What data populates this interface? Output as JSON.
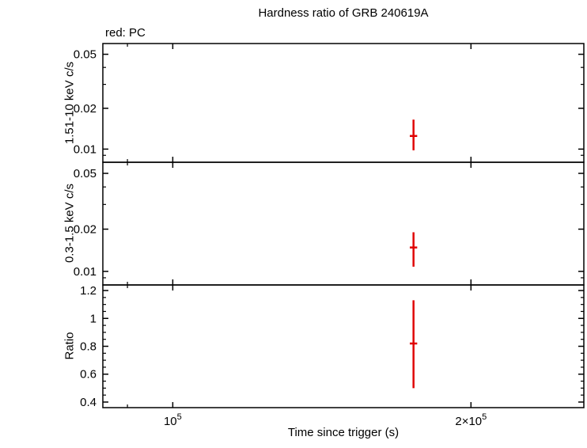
{
  "legend_label": "red: PC",
  "colors": {
    "data": "#e00000",
    "axis": "#000000",
    "background": "#ffffff"
  },
  "chart_data": {
    "type": "scatter",
    "title": "Hardness ratio of GRB 240619A",
    "xlabel": "Time since trigger (s)",
    "x_scale": "log",
    "xlim": [
      85000,
      260000
    ],
    "x_major_ticks": [
      100000,
      200000
    ],
    "x_major_tick_labels": [
      "10^5",
      "2×10^5"
    ],
    "x_minor_ticks": [
      90000
    ],
    "mode_note": "red: PC",
    "panels": [
      {
        "name": "hard-band-rate",
        "ylabel": "1.51-10 keV c/s",
        "y_scale": "log",
        "ylim": [
          0.008,
          0.06
        ],
        "y_major_ticks": [
          0.05,
          0.02,
          0.01
        ],
        "y_minor_ticks": [
          0.009,
          0.03,
          0.04,
          0.06
        ],
        "points": [
          {
            "x": 175000,
            "xerr": 1500,
            "y": 0.0125,
            "y_lo": 0.0098,
            "y_hi": 0.0165
          }
        ]
      },
      {
        "name": "soft-band-rate",
        "ylabel": "0.3-1.5 keV c/s",
        "y_scale": "log",
        "ylim": [
          0.008,
          0.06
        ],
        "y_major_ticks": [
          0.05,
          0.02,
          0.01
        ],
        "y_minor_ticks": [
          0.009,
          0.03,
          0.04,
          0.06
        ],
        "points": [
          {
            "x": 175000,
            "xerr": 1500,
            "y": 0.0148,
            "y_lo": 0.0108,
            "y_hi": 0.019
          }
        ]
      },
      {
        "name": "hardness-ratio",
        "ylabel": "Ratio",
        "y_scale": "linear",
        "ylim": [
          0.36,
          1.24
        ],
        "y_major_ticks": [
          0.4,
          0.6,
          0.8,
          1,
          1.2
        ],
        "y_minor_ticks": [
          0.45,
          0.5,
          0.55,
          0.65,
          0.7,
          0.75,
          0.85,
          0.9,
          0.95,
          1.05,
          1.1,
          1.15
        ],
        "points": [
          {
            "x": 175000,
            "xerr": 1500,
            "y": 0.82,
            "y_lo": 0.5,
            "y_hi": 1.13
          }
        ]
      }
    ]
  }
}
